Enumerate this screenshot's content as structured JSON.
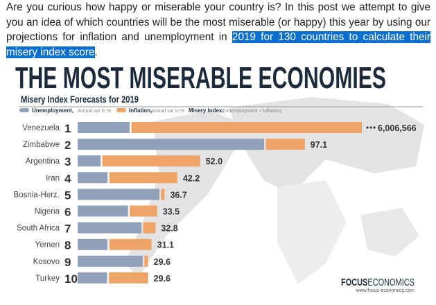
{
  "intro": {
    "text_before": "Are you curious how happy or miserable your country is? In this post we attempt to give you an idea of which countries will be the most miserable (or happy) this year by using our projections for inflation and unemployment in ",
    "text_selected": "2019 for 130 countries to calculate their misery index score",
    "text_after": "."
  },
  "colors": {
    "unemployment": "#8fa0b8",
    "inflation": "#eda466",
    "title": "#1c2b3b",
    "selection": "#0b6fd0"
  },
  "chart_data": {
    "type": "bar",
    "orientation": "horizontal",
    "stacked": true,
    "title": "THE  MOST MISERABLE ECONOMIES",
    "subtitle": "Misery Index Forecasts for 2019",
    "legend": [
      {
        "name": "Unemployment,",
        "note": "annual var in %"
      },
      {
        "name": "Inflation,",
        "note": "annual var in %"
      },
      {
        "name": "Misery Index:",
        "note": "(Unemployment + Inflation)"
      }
    ],
    "legend_placement": "top-left",
    "axis_break": "Venezuela inflation bar truncated",
    "categories": [
      "Venezuela",
      "Zimbabwe",
      "Argentina",
      "Iran",
      "Bosnia-Herz.",
      "Nigeria",
      "South Africa",
      "Yemen",
      "Kosovo",
      "Turkey"
    ],
    "ranks": [
      "1",
      "2",
      "3",
      "4",
      "5",
      "6",
      "7",
      "8",
      "9",
      "10"
    ],
    "series": [
      {
        "name": "Unemployment",
        "values": [
          22.4,
          80.3,
          9.9,
          12.9,
          35.2,
          21.7,
          27.5,
          12.9,
          28.0,
          12.7
        ]
      },
      {
        "name": "Inflation",
        "values": [
          6006544,
          16.8,
          42.1,
          29.3,
          1.5,
          11.8,
          5.3,
          18.2,
          1.6,
          16.9
        ]
      }
    ],
    "totals_labels": [
      "6,006,566",
      "97.1",
      "52.0",
      "42.2",
      "36.7",
      "33.5",
      "32.8",
      "31.1",
      "29.6",
      "29.6"
    ],
    "grid": false
  },
  "brand": {
    "bold": "FOCUS",
    "light": "ECONOMICS",
    "url": "www.focus-economics.com"
  }
}
